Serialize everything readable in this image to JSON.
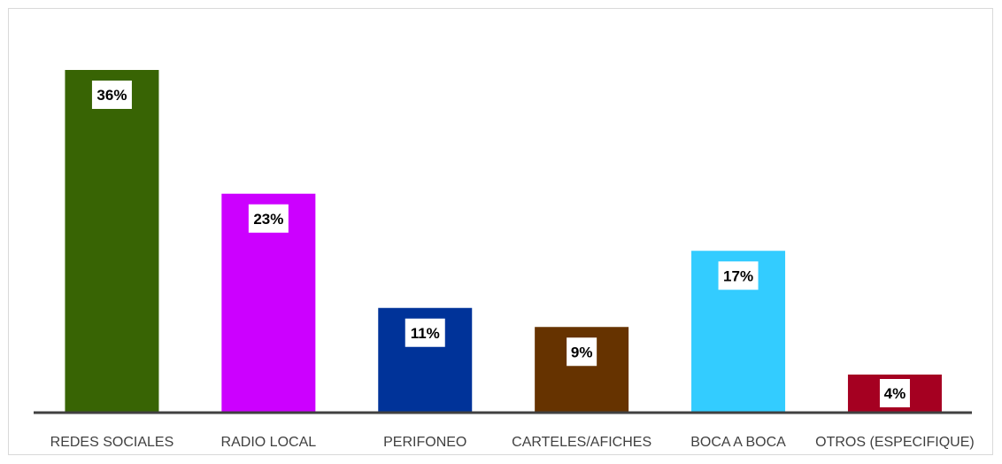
{
  "chart_data": {
    "type": "bar",
    "categories": [
      "REDES SOCIALES",
      "RADIO LOCAL",
      "PERIFONEO",
      "CARTELES/AFICHES",
      "BOCA A BOCA",
      "OTROS (ESPECIFIQUE)"
    ],
    "values": [
      36,
      23,
      11,
      9,
      17,
      4
    ],
    "data_labels": [
      "36%",
      "23%",
      "11%",
      "9%",
      "17%",
      "4%"
    ],
    "colors": [
      "#386404",
      "#cc00ff",
      "#003399",
      "#663300",
      "#33ccff",
      "#a50021"
    ],
    "title": "",
    "xlabel": "",
    "ylabel": "",
    "ylim": [
      0,
      40
    ],
    "grid": false,
    "legend": "none"
  }
}
